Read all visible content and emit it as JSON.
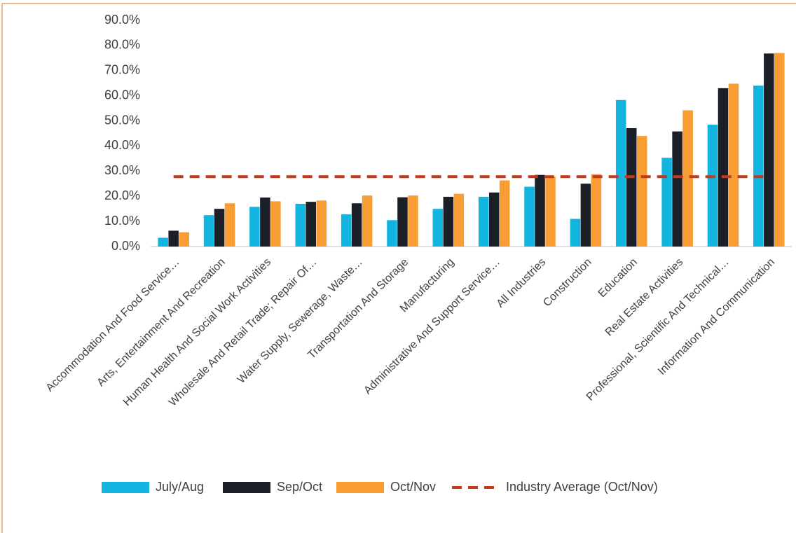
{
  "chart_data": {
    "type": "bar",
    "categories": [
      "Accommodation And Food Service…",
      "Arts, Entertainment And Recreation",
      "Human Health And Social Work Activities",
      "Wholesale And Retail Trade; Repair Of…",
      "Water Supply, Sewerage, Waste…",
      "Transportation And Storage",
      "Manufacturing",
      "Administrative And Support Service…",
      "All Industries",
      "Construction",
      "Education",
      "Real Estate Activities",
      "Professional, Scientific And Technical…",
      "Information And Communication"
    ],
    "series": [
      {
        "name": "July/Aug",
        "color": "#12b4e0",
        "values": [
          3.5,
          12.5,
          15.8,
          17.0,
          12.8,
          10.5,
          15.0,
          19.8,
          23.8,
          11.0,
          58.3,
          35.3,
          48.5,
          64.0
        ]
      },
      {
        "name": "Sep/Oct",
        "color": "#1b1f27",
        "values": [
          6.3,
          15.0,
          19.5,
          17.8,
          17.2,
          19.6,
          19.8,
          21.5,
          28.5,
          25.0,
          47.1,
          45.8,
          63.0,
          76.8
        ]
      },
      {
        "name": "Oct/Nov",
        "color": "#f89d34",
        "values": [
          5.7,
          17.2,
          18.0,
          18.3,
          20.3,
          20.3,
          21.0,
          26.3,
          27.8,
          28.8,
          44.0,
          54.2,
          64.8,
          77.0
        ]
      },
      {
        "name": "Industry Average (Oct/Nov)",
        "color": "#c4391a",
        "type": "line",
        "values": [
          27.8,
          27.8,
          27.8,
          27.8,
          27.8,
          27.8,
          27.8,
          27.8,
          27.8,
          27.8,
          27.8,
          27.8,
          27.8,
          27.8
        ]
      }
    ],
    "ylim": [
      0,
      90
    ],
    "yticks": [
      {
        "value": 0,
        "label": "0.0%"
      },
      {
        "value": 10,
        "label": "10.0%"
      },
      {
        "value": 20,
        "label": "20.0%"
      },
      {
        "value": 30,
        "label": "30.0%"
      },
      {
        "value": 40,
        "label": "40.0%"
      },
      {
        "value": 50,
        "label": "50.0%"
      },
      {
        "value": 60,
        "label": "60.0%"
      },
      {
        "value": 70,
        "label": "70.0%"
      },
      {
        "value": 80,
        "label": "80.0%"
      },
      {
        "value": 90,
        "label": "90.0%"
      }
    ],
    "grid": false,
    "legend": "bottom"
  }
}
